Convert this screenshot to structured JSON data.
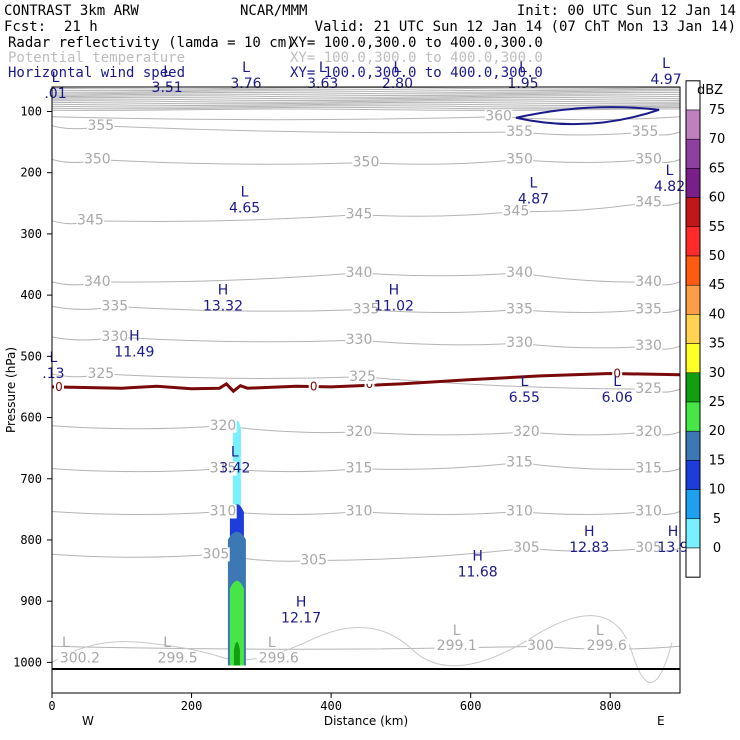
{
  "header": {
    "model": "CONTRAST  3km ARW",
    "org": "NCAR/MMM",
    "init": "Init: 00 UTC Sun 12 Jan 14",
    "fcst_label": "Fcst:",
    "fcst_value": "21 h",
    "valid": "Valid: 21 UTC Sun 12 Jan 14 (07 ChT Mon 13 Jan 14)",
    "fields": [
      {
        "name": "Radar reflectivity (lamda = 10 cm)",
        "xy": "XY= 100.0,300.0 to 400.0,300.0",
        "color": "#000000"
      },
      {
        "name": "Potential temperature",
        "xy": "XY= 100.0,300.0 to 400.0,300.0",
        "color": "#bdbdbd"
      },
      {
        "name": "Horizontal wind speed",
        "xy": "XY= 100.0,300.0 to 400.0,300.0",
        "color": "#1a1a8a"
      }
    ]
  },
  "chart_data": {
    "type": "cross-section",
    "xlabel": "Distance (km)",
    "ylabel": "Pressure (hPa)",
    "xlim": [
      0,
      900
    ],
    "ylim": [
      1050,
      60
    ],
    "x_ticks": [
      "0",
      "200",
      "400",
      "600",
      "800"
    ],
    "y_ticks": [
      "100",
      "200",
      "300",
      "400",
      "500",
      "600",
      "700",
      "800",
      "900",
      "1000"
    ],
    "x_ends": {
      "west": "W",
      "east": "E"
    },
    "theta_labels": [
      {
        "text": "355",
        "x": 70,
        "p": 130
      },
      {
        "text": "360",
        "x": 640,
        "p": 115
      },
      {
        "text": "355",
        "x": 670,
        "p": 140
      },
      {
        "text": "355",
        "x": 850,
        "p": 140
      },
      {
        "text": "350",
        "x": 65,
        "p": 185
      },
      {
        "text": "350",
        "x": 450,
        "p": 190
      },
      {
        "text": "350",
        "x": 670,
        "p": 185
      },
      {
        "text": "350",
        "x": 855,
        "p": 185
      },
      {
        "text": "345",
        "x": 55,
        "p": 285
      },
      {
        "text": "345",
        "x": 440,
        "p": 275
      },
      {
        "text": "345",
        "x": 665,
        "p": 270
      },
      {
        "text": "345",
        "x": 855,
        "p": 255
      },
      {
        "text": "340",
        "x": 65,
        "p": 385
      },
      {
        "text": "340",
        "x": 440,
        "p": 370
      },
      {
        "text": "340",
        "x": 670,
        "p": 370
      },
      {
        "text": "340",
        "x": 855,
        "p": 385
      },
      {
        "text": "335",
        "x": 90,
        "p": 425
      },
      {
        "text": "335",
        "x": 450,
        "p": 430
      },
      {
        "text": "335",
        "x": 670,
        "p": 430
      },
      {
        "text": "335",
        "x": 855,
        "p": 430
      },
      {
        "text": "330",
        "x": 90,
        "p": 475
      },
      {
        "text": "330",
        "x": 440,
        "p": 480
      },
      {
        "text": "330",
        "x": 670,
        "p": 485
      },
      {
        "text": "330",
        "x": 855,
        "p": 490
      },
      {
        "text": "325",
        "x": 70,
        "p": 535
      },
      {
        "text": "325",
        "x": 445,
        "p": 540
      },
      {
        "text": "325",
        "x": 855,
        "p": 560
      },
      {
        "text": "320",
        "x": 245,
        "p": 620
      },
      {
        "text": "320",
        "x": 440,
        "p": 630
      },
      {
        "text": "320",
        "x": 680,
        "p": 630
      },
      {
        "text": "320",
        "x": 855,
        "p": 630
      },
      {
        "text": "315",
        "x": 245,
        "p": 690
      },
      {
        "text": "315",
        "x": 440,
        "p": 690
      },
      {
        "text": "315",
        "x": 670,
        "p": 680
      },
      {
        "text": "315",
        "x": 855,
        "p": 690
      },
      {
        "text": "310",
        "x": 245,
        "p": 760
      },
      {
        "text": "310",
        "x": 440,
        "p": 760
      },
      {
        "text": "310",
        "x": 670,
        "p": 760
      },
      {
        "text": "310",
        "x": 855,
        "p": 760
      },
      {
        "text": "305",
        "x": 235,
        "p": 830
      },
      {
        "text": "305",
        "x": 375,
        "p": 840
      },
      {
        "text": "305",
        "x": 680,
        "p": 820
      },
      {
        "text": "305",
        "x": 855,
        "p": 820
      },
      {
        "text": "300",
        "x": 700,
        "p": 980
      },
      {
        "text": "300.2",
        "x": 40,
        "p": 1000
      },
      {
        "text": "299.5",
        "x": 180,
        "p": 1000
      },
      {
        "text": "299.6",
        "x": 325,
        "p": 1000
      },
      {
        "text": "299.1",
        "x": 580,
        "p": 980
      },
      {
        "text": "299.6",
        "x": 795,
        "p": 980
      }
    ],
    "theta_centers": [
      {
        "text": "L",
        "x": 20,
        "p": 975
      },
      {
        "text": "L",
        "x": 165,
        "p": 975
      },
      {
        "text": "L",
        "x": 315,
        "p": 975
      },
      {
        "text": "L",
        "x": 580,
        "p": 955
      },
      {
        "text": "L",
        "x": 785,
        "p": 955
      }
    ],
    "wind_labels": [
      {
        "kind": "L",
        "value": ".01",
        "x": 5,
        "p": 78
      },
      {
        "kind": "L",
        "value": "3.51",
        "x": 165,
        "p": 68
      },
      {
        "kind": "L",
        "value": "3.76",
        "x": 278,
        "p": 62
      },
      {
        "kind": "L",
        "value": "3.63",
        "x": 388,
        "p": 62
      },
      {
        "kind": "L",
        "value": "2.80",
        "x": 495,
        "p": 62
      },
      {
        "kind": "L",
        "value": "1.95",
        "x": 675,
        "p": 62
      },
      {
        "kind": "L",
        "value": "4.97",
        "x": 880,
        "p": 55
      },
      {
        "kind": "L",
        "value": "4.65",
        "x": 276,
        "p": 265
      },
      {
        "kind": "L",
        "value": "4.87",
        "x": 690,
        "p": 250
      },
      {
        "kind": "L",
        "value": "4.82",
        "x": 885,
        "p": 230
      },
      {
        "kind": "H",
        "value": "13.32",
        "x": 245,
        "p": 425
      },
      {
        "kind": "H",
        "value": "11.02",
        "x": 490,
        "p": 425
      },
      {
        "kind": "H",
        "value": "11.49",
        "x": 118,
        "p": 500
      },
      {
        "kind": "L",
        "value": ".13",
        "x": 2,
        "p": 535
      },
      {
        "kind": "L",
        "value": "6.55",
        "x": 677,
        "p": 575
      },
      {
        "kind": "L",
        "value": "6.06",
        "x": 810,
        "p": 575
      },
      {
        "kind": "L",
        "value": "3.42",
        "x": 262,
        "p": 690
      },
      {
        "kind": "H",
        "value": "12.83",
        "x": 770,
        "p": 820
      },
      {
        "kind": "H",
        "value": "13.9",
        "x": 890,
        "p": 820
      },
      {
        "kind": "H",
        "value": "11.68",
        "x": 610,
        "p": 860
      },
      {
        "kind": "H",
        "value": "12.17",
        "x": 357,
        "p": 935
      }
    ],
    "wind_closed_contour": {
      "x_range": [
        665,
        870
      ],
      "p_center": 107
    },
    "melting_line": {
      "label": "0",
      "points": [
        [
          0,
          550
        ],
        [
          100,
          552
        ],
        [
          150,
          549
        ],
        [
          200,
          553
        ],
        [
          240,
          552
        ],
        [
          250,
          545
        ],
        [
          260,
          557
        ],
        [
          270,
          548
        ],
        [
          280,
          552
        ],
        [
          350,
          549
        ],
        [
          400,
          550
        ],
        [
          500,
          545
        ],
        [
          600,
          538
        ],
        [
          700,
          532
        ],
        [
          800,
          528
        ],
        [
          900,
          530
        ]
      ],
      "label_x": [
        10,
        375,
        455,
        810
      ]
    },
    "reflectivity_column": {
      "x_center": 265,
      "layers": [
        {
          "dbz": "5",
          "top": 598,
          "half_width": 4
        },
        {
          "dbz": "20",
          "top": 735,
          "half_width": 7
        },
        {
          "dbz": "25",
          "top": 780,
          "half_width": 9
        },
        {
          "dbz": "30",
          "top": 860,
          "half_width": 7
        },
        {
          "dbz": "35",
          "top": 960,
          "half_width": 3
        }
      ]
    },
    "colorbar": {
      "unit": "dBZ",
      "levels": [
        "75",
        "70",
        "65",
        "60",
        "55",
        "50",
        "45",
        "40",
        "35",
        "30",
        "25",
        "20",
        "15",
        "10",
        "5",
        "0"
      ],
      "colors": [
        "#ffffff",
        "#c080c0",
        "#8f3f9f",
        "#7a1e8a",
        "#c01818",
        "#ff2a2a",
        "#ff5a12",
        "#ff9c46",
        "#ffd250",
        "#ffff28",
        "#0f9f0f",
        "#46e646",
        "#3c78b4",
        "#1e3cdc",
        "#1ea0f0",
        "#78f0ff",
        "#ffffff"
      ]
    }
  }
}
